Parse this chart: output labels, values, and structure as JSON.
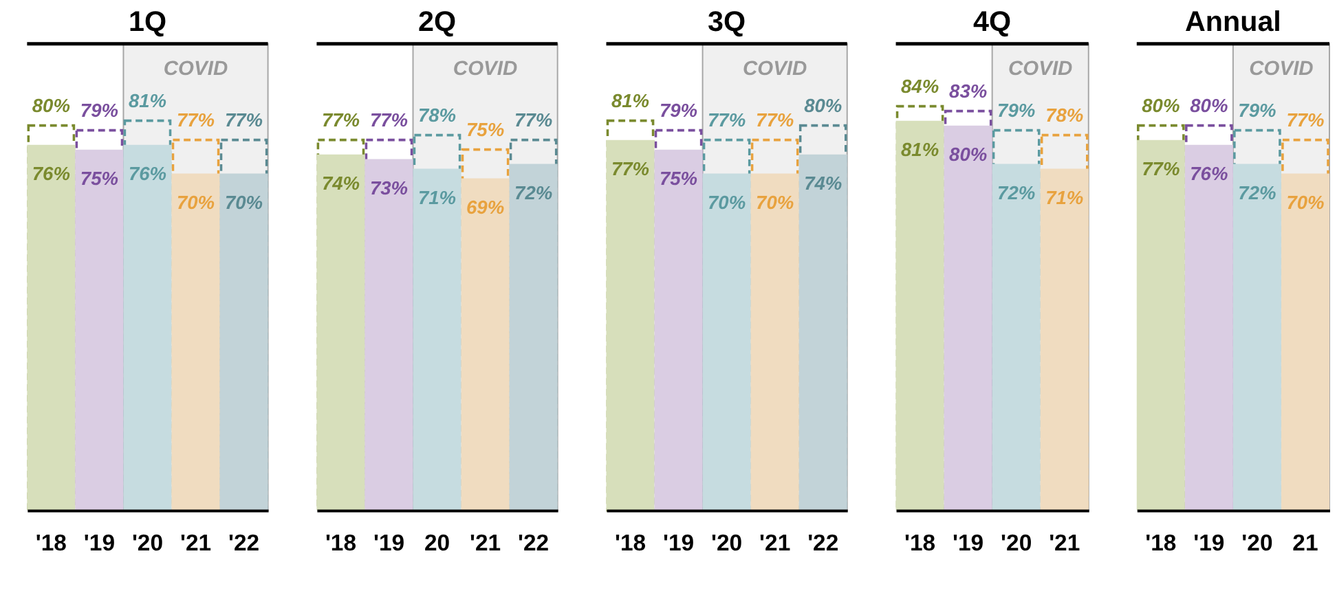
{
  "chart_data": [
    {
      "type": "bar",
      "title": "1Q",
      "categories": [
        "'18",
        "'19",
        "'20",
        "'21",
        "'22"
      ],
      "ylim": [
        0,
        97
      ],
      "tick_labels": "x",
      "series": [
        {
          "colors": [
            "#d7dfbb",
            "#dacde3",
            "#c6dce0",
            "#f0dcc0",
            "#c2d3d8"
          ],
          "values": [
            76,
            75,
            76,
            70,
            70
          ],
          "value_labels": [
            "76%",
            "75%",
            "76%",
            "70%",
            "70%"
          ]
        },
        {
          "colors": [
            "#7a8a2e",
            "#7a4f9e",
            "#5b9aa0",
            "#e8a23e",
            "#5a8a92"
          ],
          "line_style": "dashed",
          "values": [
            80,
            79,
            81,
            77,
            77
          ],
          "value_labels": [
            "80%",
            "79%",
            "81%",
            "77%",
            "77%"
          ]
        }
      ],
      "bands": [
        {
          "axis": "x",
          "from": "'20",
          "to": "'22",
          "label": "COVID",
          "color": "#f0f0f0"
        }
      ]
    },
    {
      "type": "bar",
      "title": "2Q",
      "categories": [
        "'18",
        "'19",
        "20",
        "'21",
        "'22"
      ],
      "ylim": [
        0,
        97
      ],
      "tick_labels": "x",
      "series": [
        {
          "colors": [
            "#d7dfbb",
            "#dacde3",
            "#c6dce0",
            "#f0dcc0",
            "#c2d3d8"
          ],
          "values": [
            74,
            73,
            71,
            69,
            72
          ],
          "value_labels": [
            "74%",
            "73%",
            "71%",
            "69%",
            "72%"
          ]
        },
        {
          "colors": [
            "#7a8a2e",
            "#7a4f9e",
            "#5b9aa0",
            "#e8a23e",
            "#5a8a92"
          ],
          "line_style": "dashed",
          "values": [
            77,
            77,
            78,
            75,
            77
          ],
          "value_labels": [
            "77%",
            "77%",
            "78%",
            "75%",
            "77%"
          ]
        }
      ],
      "bands": [
        {
          "axis": "x",
          "from": "20",
          "to": "'22",
          "label": "COVID",
          "color": "#f0f0f0"
        }
      ]
    },
    {
      "type": "bar",
      "title": "3Q",
      "categories": [
        "'18",
        "'19",
        "'20",
        "'21",
        "'22"
      ],
      "ylim": [
        0,
        97
      ],
      "tick_labels": "x",
      "series": [
        {
          "colors": [
            "#d7dfbb",
            "#dacde3",
            "#c6dce0",
            "#f0dcc0",
            "#c2d3d8"
          ],
          "values": [
            77,
            75,
            70,
            70,
            74
          ],
          "value_labels": [
            "77%",
            "75%",
            "70%",
            "70%",
            "74%"
          ]
        },
        {
          "colors": [
            "#7a8a2e",
            "#7a4f9e",
            "#5b9aa0",
            "#e8a23e",
            "#5a8a92"
          ],
          "line_style": "dashed",
          "values": [
            81,
            79,
            77,
            77,
            80
          ],
          "value_labels": [
            "81%",
            "79%",
            "77%",
            "77%",
            "80%"
          ]
        }
      ],
      "bands": [
        {
          "axis": "x",
          "from": "'20",
          "to": "'22",
          "label": "COVID",
          "color": "#f0f0f0"
        }
      ]
    },
    {
      "type": "bar",
      "title": "4Q",
      "categories": [
        "'18",
        "'19",
        "'20",
        "'21"
      ],
      "ylim": [
        0,
        97
      ],
      "tick_labels": "x",
      "series": [
        {
          "colors": [
            "#d7dfbb",
            "#dacde3",
            "#c6dce0",
            "#f0dcc0"
          ],
          "values": [
            81,
            80,
            72,
            71
          ],
          "value_labels": [
            "81%",
            "80%",
            "72%",
            "71%"
          ]
        },
        {
          "colors": [
            "#7a8a2e",
            "#7a4f9e",
            "#5b9aa0",
            "#e8a23e"
          ],
          "line_style": "dashed",
          "values": [
            84,
            83,
            79,
            78
          ],
          "value_labels": [
            "84%",
            "83%",
            "79%",
            "78%"
          ]
        }
      ],
      "bands": [
        {
          "axis": "x",
          "from": "'20",
          "to": "'21",
          "label": "COVID",
          "color": "#f0f0f0"
        }
      ]
    },
    {
      "type": "bar",
      "title": "Annual",
      "categories": [
        "'18",
        "'19",
        "'20",
        "21"
      ],
      "ylim": [
        0,
        97
      ],
      "tick_labels": "x",
      "series": [
        {
          "colors": [
            "#d7dfbb",
            "#dacde3",
            "#c6dce0",
            "#f0dcc0"
          ],
          "values": [
            77,
            76,
            72,
            70
          ],
          "value_labels": [
            "77%",
            "76%",
            "72%",
            "70%"
          ]
        },
        {
          "colors": [
            "#7a8a2e",
            "#7a4f9e",
            "#5b9aa0",
            "#e8a23e"
          ],
          "line_style": "dashed",
          "values": [
            80,
            80,
            79,
            77
          ],
          "value_labels": [
            "80%",
            "80%",
            "79%",
            "77%"
          ]
        }
      ],
      "bands": [
        {
          "axis": "x",
          "from": "'20",
          "to": "21",
          "label": "COVID",
          "color": "#f0f0f0"
        }
      ]
    }
  ]
}
